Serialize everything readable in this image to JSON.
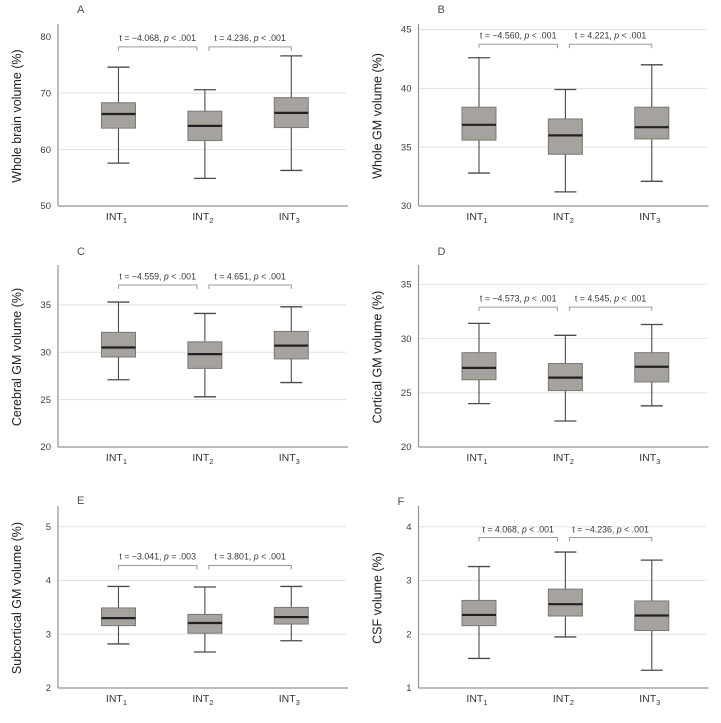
{
  "figure": {
    "background": "#ffffff",
    "box_fill": "#a6a29e",
    "box_stroke": "#7b7874",
    "median_color": "#222222",
    "whisker_color": "#4a4a4a",
    "grid_color": "#e3e1df",
    "axis_color": "#969390",
    "bracket_color": "#9a9a9a",
    "tick_text_color": "#3c3c3c",
    "annotation_text_color": "#383838",
    "letter_color": "#4d4d4d"
  },
  "chart_data": [
    {
      "type": "boxplot",
      "panel_label": "A",
      "ylabel": "Whole brain volume (%)",
      "ylim": [
        50,
        81.9
      ],
      "yticks": [
        50,
        60,
        70,
        80
      ],
      "gridlines": [
        60,
        70
      ],
      "grid": true,
      "legend": "none",
      "categories": [
        {
          "base": "INT",
          "sub": "1"
        },
        {
          "base": "INT",
          "sub": "2"
        },
        {
          "base": "INT",
          "sub": "3"
        }
      ],
      "boxes": [
        {
          "whisker_low": 57.6,
          "q1": 63.8,
          "median": 66.3,
          "q3": 68.3,
          "whisker_high": 74.6
        },
        {
          "whisker_low": 54.9,
          "q1": 61.6,
          "median": 64.2,
          "q3": 66.8,
          "whisker_high": 70.6
        },
        {
          "whisker_low": 56.3,
          "q1": 63.9,
          "median": 66.5,
          "q3": 69.2,
          "whisker_high": 76.6
        }
      ],
      "comparisons": [
        {
          "between": [
            0,
            1
          ],
          "t_label": "t = −4.068",
          "p_label": "p < .001",
          "bracket_y": 78.2,
          "text_y": 79.8
        },
        {
          "between": [
            1,
            2
          ],
          "t_label": "t = 4.236",
          "p_label": "p < .001",
          "bracket_y": 78.2,
          "text_y": 79.8
        }
      ],
      "letter_xy": [
        77,
        13
      ]
    },
    {
      "type": "boxplot",
      "panel_label": "B",
      "ylabel": "Whole GM volume (%)",
      "ylim": [
        30,
        45.3
      ],
      "yticks": [
        30,
        35,
        40,
        45
      ],
      "gridlines": [
        35,
        40,
        45
      ],
      "grid": true,
      "legend": "none",
      "categories": [
        {
          "base": "INT",
          "sub": "1"
        },
        {
          "base": "INT",
          "sub": "2"
        },
        {
          "base": "INT",
          "sub": "3"
        }
      ],
      "boxes": [
        {
          "whisker_low": 32.8,
          "q1": 35.6,
          "median": 36.9,
          "q3": 38.4,
          "whisker_high": 42.6
        },
        {
          "whisker_low": 31.2,
          "q1": 34.4,
          "median": 36.0,
          "q3": 37.4,
          "whisker_high": 39.9
        },
        {
          "whisker_low": 32.1,
          "q1": 35.7,
          "median": 36.7,
          "q3": 38.4,
          "whisker_high": 42.0
        }
      ],
      "comparisons": [
        {
          "between": [
            0,
            1
          ],
          "t_label": "t = −4.560",
          "p_label": "p < .001",
          "bracket_y": 43.75,
          "text_y": 44.5
        },
        {
          "between": [
            1,
            2
          ],
          "t_label": "t = 4.221",
          "p_label": "p < .001",
          "bracket_y": 43.75,
          "text_y": 44.5
        }
      ],
      "letter_xy": [
        77,
        13
      ]
    },
    {
      "type": "boxplot",
      "panel_label": "C",
      "ylabel": "Cerebral GM volume (%)",
      "ylim": [
        20,
        39.0
      ],
      "yticks": [
        20,
        25,
        30,
        35
      ],
      "gridlines": [
        25,
        30,
        35
      ],
      "grid": true,
      "legend": "none",
      "categories": [
        {
          "base": "INT",
          "sub": "1"
        },
        {
          "base": "INT",
          "sub": "2"
        },
        {
          "base": "INT",
          "sub": "3"
        }
      ],
      "boxes": [
        {
          "whisker_low": 27.1,
          "q1": 29.5,
          "median": 30.5,
          "q3": 32.1,
          "whisker_high": 35.3
        },
        {
          "whisker_low": 25.3,
          "q1": 28.3,
          "median": 29.8,
          "q3": 31.1,
          "whisker_high": 34.1
        },
        {
          "whisker_low": 26.8,
          "q1": 29.3,
          "median": 30.7,
          "q3": 32.2,
          "whisker_high": 34.8
        }
      ],
      "comparisons": [
        {
          "between": [
            0,
            1
          ],
          "t_label": "t = −4.559",
          "p_label": "p < .001",
          "bracket_y": 37.1,
          "text_y": 38.0
        },
        {
          "between": [
            1,
            2
          ],
          "t_label": "t = 4.651",
          "p_label": "p < .001",
          "bracket_y": 37.1,
          "text_y": 38.0
        }
      ],
      "letter_xy": [
        77,
        14
      ]
    },
    {
      "type": "boxplot",
      "panel_label": "D",
      "ylabel": "Cortical GM volume (%)",
      "ylim": [
        20,
        36.6
      ],
      "yticks": [
        20,
        25,
        30,
        35
      ],
      "gridlines": [
        25,
        30,
        35
      ],
      "grid": true,
      "legend": "none",
      "categories": [
        {
          "base": "INT",
          "sub": "1"
        },
        {
          "base": "INT",
          "sub": "2"
        },
        {
          "base": "INT",
          "sub": "3"
        }
      ],
      "boxes": [
        {
          "whisker_low": 24.0,
          "q1": 26.2,
          "median": 27.3,
          "q3": 28.7,
          "whisker_high": 31.4
        },
        {
          "whisker_low": 22.4,
          "q1": 25.2,
          "median": 26.4,
          "q3": 27.7,
          "whisker_high": 30.3
        },
        {
          "whisker_low": 23.8,
          "q1": 26.0,
          "median": 27.4,
          "q3": 28.7,
          "whisker_high": 31.3
        }
      ],
      "comparisons": [
        {
          "between": [
            0,
            1
          ],
          "t_label": "t = −4.573",
          "p_label": "p < .001",
          "bracket_y": 32.9,
          "text_y": 33.7
        },
        {
          "between": [
            1,
            2
          ],
          "t_label": "t = 4.545",
          "p_label": "p < .001",
          "bracket_y": 32.9,
          "text_y": 33.7
        }
      ],
      "letter_xy": [
        77,
        14
      ]
    },
    {
      "type": "boxplot",
      "panel_label": "E",
      "ylabel": "Subcortical GM volume (%)",
      "ylim": [
        2,
        5.35
      ],
      "yticks": [
        2,
        3,
        4,
        5
      ],
      "gridlines": [
        3,
        4,
        5
      ],
      "grid": true,
      "legend": "none",
      "categories": [
        {
          "base": "INT",
          "sub": "1"
        },
        {
          "base": "INT",
          "sub": "2"
        },
        {
          "base": "INT",
          "sub": "3"
        }
      ],
      "boxes": [
        {
          "whisker_low": 2.82,
          "q1": 3.16,
          "median": 3.3,
          "q3": 3.49,
          "whisker_high": 3.89
        },
        {
          "whisker_low": 2.67,
          "q1": 3.02,
          "median": 3.21,
          "q3": 3.37,
          "whisker_high": 3.88
        },
        {
          "whisker_low": 2.88,
          "q1": 3.19,
          "median": 3.32,
          "q3": 3.5,
          "whisker_high": 3.89
        }
      ],
      "comparisons": [
        {
          "between": [
            0,
            1
          ],
          "t_label": "t = −3.041",
          "p_label": "p = .003",
          "bracket_y": 4.28,
          "text_y": 4.45
        },
        {
          "between": [
            1,
            2
          ],
          "t_label": "t = 3.801",
          "p_label": "p < .001",
          "bracket_y": 4.28,
          "text_y": 4.45
        }
      ],
      "letter_xy": [
        77,
        22
      ]
    },
    {
      "type": "boxplot",
      "panel_label": "F",
      "ylabel": "CSF volume (%)",
      "ylim": [
        1,
        4.35
      ],
      "yticks": [
        1,
        2,
        3,
        4
      ],
      "gridlines": [
        2,
        3,
        4
      ],
      "grid": true,
      "legend": "none",
      "categories": [
        {
          "base": "INT",
          "sub": "1"
        },
        {
          "base": "INT",
          "sub": "2"
        },
        {
          "base": "INT",
          "sub": "3"
        }
      ],
      "boxes": [
        {
          "whisker_low": 1.55,
          "q1": 2.16,
          "median": 2.36,
          "q3": 2.63,
          "whisker_high": 3.26
        },
        {
          "whisker_low": 1.95,
          "q1": 2.34,
          "median": 2.56,
          "q3": 2.84,
          "whisker_high": 3.53
        },
        {
          "whisker_low": 1.33,
          "q1": 2.07,
          "median": 2.35,
          "q3": 2.62,
          "whisker_high": 3.38
        }
      ],
      "comparisons": [
        {
          "between": [
            0,
            1
          ],
          "t_label": "t = 4.068",
          "p_label": "p < .001",
          "bracket_y": 3.8,
          "text_y": 3.95
        },
        {
          "between": [
            1,
            2
          ],
          "t_label": "t = −4.236",
          "p_label": "p < .001",
          "bracket_y": 3.8,
          "text_y": 3.95
        }
      ],
      "letter_xy": [
        37,
        23
      ]
    }
  ]
}
